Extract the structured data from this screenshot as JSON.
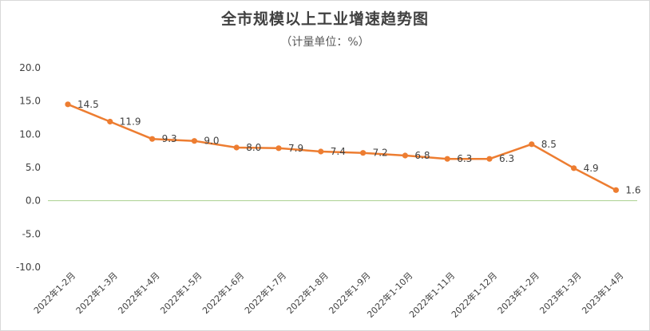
{
  "chart_data": {
    "type": "line",
    "title": "全市规模以上工业增速趋势图",
    "subtitle": "（计量单位：%）",
    "categories": [
      "2022年1-2月",
      "2022年1-3月",
      "2022年1-4月",
      "2022年1-5月",
      "2022年1-6月",
      "2022年1-7月",
      "2022年1-8月",
      "2022年1-9月",
      "2022年1-10月",
      "2022年1-11月",
      "2022年1-12月",
      "2023年1-2月",
      "2023年1-3月",
      "2023年1-4月"
    ],
    "series": [
      {
        "values": [
          14.5,
          11.9,
          9.3,
          9.0,
          8.0,
          7.9,
          7.4,
          7.2,
          6.8,
          6.3,
          6.3,
          8.5,
          4.9,
          1.6
        ]
      }
    ],
    "data_labels": [
      "14.5",
      "11.9",
      "9.3",
      "9.0",
      "8.0",
      "7.9",
      "7.4",
      "7.2",
      "6.8",
      "6.3",
      "6.3",
      "8.5",
      "4.9",
      "1.6"
    ],
    "yticks": [
      "20.0",
      "15.0",
      "10.0",
      "5.0",
      "0.0",
      "-5.0",
      "-10.0"
    ],
    "ylim": [
      -10,
      20
    ],
    "grid": false,
    "legend": "none",
    "colors": {
      "line": "#ED7D31",
      "zero_line": "#A9D18E",
      "border": "#D9D9D9"
    }
  }
}
